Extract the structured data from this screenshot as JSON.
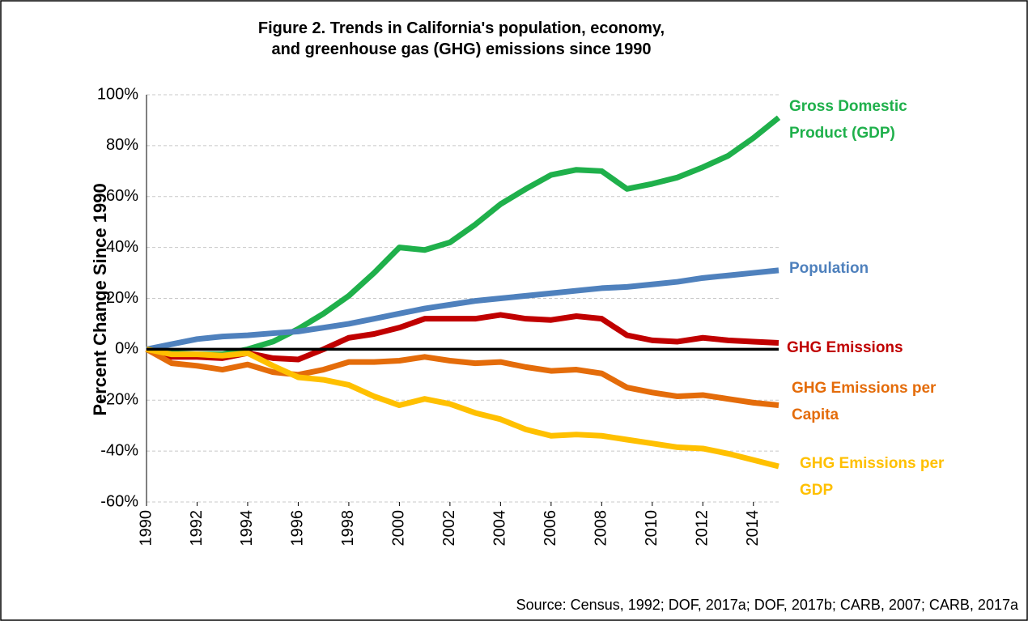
{
  "chart_data": {
    "type": "line",
    "title": "Figure 2. Trends in California's population, economy,\nand greenhouse gas (GHG) emissions since 1990",
    "y_label": "Percent Change Since 1990",
    "source": "Source: Census, 1992; DOF, 2017a; DOF, 2017b; CARB, 2007; CARB, 2017a",
    "x": [
      1990,
      1991,
      1992,
      1993,
      1994,
      1995,
      1996,
      1997,
      1998,
      1999,
      2000,
      2001,
      2002,
      2003,
      2004,
      2005,
      2006,
      2007,
      2008,
      2009,
      2010,
      2011,
      2012,
      2013,
      2014,
      2015
    ],
    "xlim": [
      1990,
      2015
    ],
    "xticks": [
      1990,
      1992,
      1994,
      1996,
      1998,
      2000,
      2002,
      2004,
      2006,
      2008,
      2010,
      2012,
      2014
    ],
    "ylim": [
      -60,
      100
    ],
    "yticks": [
      {
        "value": -60,
        "label": "-60%"
      },
      {
        "value": -40,
        "label": "-40%"
      },
      {
        "value": -20,
        "label": "-20%"
      },
      {
        "value": 0,
        "label": "0%"
      },
      {
        "value": 20,
        "label": "20%"
      },
      {
        "value": 40,
        "label": "40%"
      },
      {
        "value": 60,
        "label": "60%"
      },
      {
        "value": 80,
        "label": "80%"
      },
      {
        "value": 100,
        "label": "100%"
      }
    ],
    "grid": true,
    "series": [
      {
        "name": "Gross Domestic Product (GDP)",
        "color": "#1fb04b",
        "values": [
          0,
          -1.5,
          -2,
          -2,
          0,
          3,
          8,
          14,
          21,
          30,
          40,
          39,
          42,
          49,
          57,
          63,
          68.5,
          70.5,
          70,
          63,
          65,
          67.5,
          71.5,
          76,
          83,
          91
        ]
      },
      {
        "name": "Population",
        "color": "#4f81bd",
        "values": [
          0,
          2,
          4,
          5,
          5.5,
          6.3,
          7,
          8.5,
          10,
          12,
          14,
          16,
          17.5,
          19,
          20,
          21,
          22,
          23,
          24,
          24.5,
          25.5,
          26.5,
          28,
          29,
          30,
          31
        ]
      },
      {
        "name": "GHG Emissions",
        "color": "#c00000",
        "values": [
          0,
          -3,
          -3,
          -3.5,
          -1.5,
          -3.5,
          -4,
          0,
          4.5,
          6,
          8.5,
          12,
          12,
          12,
          13.5,
          12,
          11.5,
          13,
          12,
          5.5,
          3.5,
          3,
          4.5,
          3.5,
          3,
          2.5
        ]
      },
      {
        "name": "GHG Emissions per Capita",
        "color": "#e46c0a",
        "values": [
          0,
          -5.5,
          -6.5,
          -8,
          -6,
          -9,
          -10,
          -8,
          -5,
          -5,
          -4.5,
          -3,
          -4.5,
          -5.5,
          -5,
          -7,
          -8.5,
          -8,
          -9.5,
          -15,
          -17,
          -18.5,
          -18,
          -19.5,
          -21,
          -22
        ]
      },
      {
        "name": "GHG Emissions per GDP",
        "color": "#ffc000",
        "values": [
          0,
          -2,
          -2,
          -2.5,
          -1.5,
          -6.5,
          -11,
          -12,
          -14,
          -18.5,
          -22,
          -19.5,
          -21.5,
          -25,
          -27.5,
          -31.5,
          -34,
          -33.5,
          -34,
          -35.5,
          -37,
          -38.5,
          -39,
          -41,
          -43.5,
          -46
        ]
      }
    ]
  }
}
